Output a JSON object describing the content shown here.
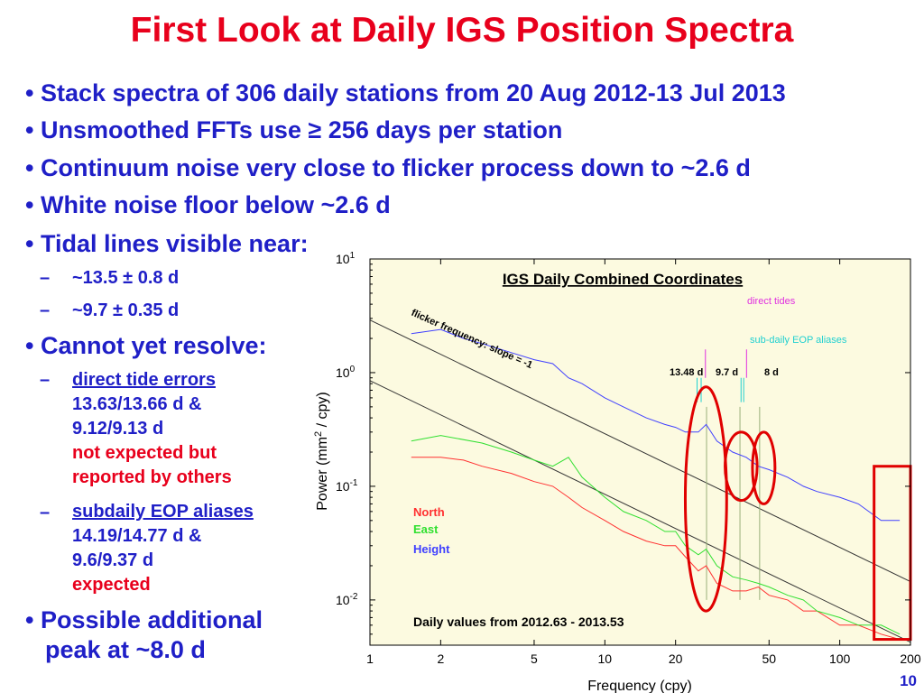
{
  "slide": {
    "title": "First Look at Daily IGS Position Spectra",
    "bullets": [
      "• Stack spectra of 306 daily stations from 20 Aug 2012-13 Jul 2013",
      "• Unsmoothed FFTs use ≥ 256 days per station",
      "• Continuum noise very close to flicker process down to ~2.6 d",
      "• White noise floor below ~2.6 d",
      "• Tidal lines visible near:"
    ],
    "tidal_lines": [
      "~13.5 ± 0.8 d",
      "~9.7 ± 0.35 d"
    ],
    "cannot_resolve": {
      "heading": "• Cannot yet resolve:",
      "dash": "–",
      "item1": {
        "title": "direct tide errors",
        "line1": "13.63/13.66 d &",
        "line2": "9.12/9.13 d",
        "note1": "not expected but",
        "note2": "reported by others"
      },
      "item2": {
        "title": "subdaily EOP aliases",
        "line1": "14.19/14.77 d &",
        "line2": "9.6/9.37 d",
        "note1": "expected"
      }
    },
    "possible": {
      "line1": "• Possible additional",
      "line2": "peak at ~8.0 d"
    },
    "page_number": "10"
  },
  "colors": {
    "title": "#e8001c",
    "text": "#1f1fc7",
    "plot_bg": "#fcfae0",
    "north": "#ff3030",
    "east": "#30e030",
    "height": "#4040ff",
    "direct_tides": "#e030e0",
    "eop": "#20d0d0",
    "highlight": "#e00000"
  },
  "chart_data": {
    "type": "line",
    "title": "IGS Daily Combined Coordinates",
    "xlabel": "Frequency (cpy)",
    "ylabel_main": "Power (mm",
    "ylabel_sup": "2",
    "ylabel_tail": " / cpy)",
    "x_scale": "log",
    "y_scale": "log",
    "xlim": [
      1,
      200
    ],
    "ylim": [
      0.004,
      10
    ],
    "x_ticks": [
      1,
      2,
      5,
      10,
      20,
      50,
      100,
      200
    ],
    "x_tick_labels": [
      "1",
      "2",
      "5",
      "10",
      "20",
      "50",
      "100",
      "200"
    ],
    "y_ticks": [
      10,
      1,
      0.1,
      0.01
    ],
    "y_tick_labels": [
      {
        "base": "10",
        "exp": "1"
      },
      {
        "base": "10",
        "exp": "0"
      },
      {
        "base": "10",
        "exp": "-1"
      },
      {
        "base": "10",
        "exp": "-2"
      }
    ],
    "series": [
      {
        "name": "North",
        "color": "#ff3030",
        "x": [
          1.5,
          2,
          2.5,
          3,
          4,
          5,
          6,
          7,
          8,
          10,
          12,
          15,
          18,
          20,
          22,
          25,
          27,
          30,
          35,
          40,
          45,
          50,
          60,
          70,
          80,
          100,
          120,
          150,
          180
        ],
        "y": [
          0.18,
          0.18,
          0.17,
          0.15,
          0.13,
          0.11,
          0.1,
          0.08,
          0.065,
          0.05,
          0.04,
          0.033,
          0.03,
          0.03,
          0.024,
          0.018,
          0.02,
          0.014,
          0.012,
          0.012,
          0.013,
          0.011,
          0.01,
          0.008,
          0.008,
          0.006,
          0.006,
          0.005,
          0.0045
        ]
      },
      {
        "name": "East",
        "color": "#30e030",
        "x": [
          1.5,
          2,
          3,
          4,
          5,
          6,
          7,
          8,
          10,
          12,
          15,
          18,
          20,
          22,
          25,
          27,
          30,
          35,
          40,
          45,
          50,
          60,
          70,
          80,
          100,
          120,
          150,
          180
        ],
        "y": [
          0.25,
          0.28,
          0.24,
          0.2,
          0.17,
          0.15,
          0.18,
          0.12,
          0.08,
          0.06,
          0.05,
          0.04,
          0.04,
          0.03,
          0.025,
          0.028,
          0.02,
          0.016,
          0.015,
          0.014,
          0.013,
          0.011,
          0.01,
          0.008,
          0.007,
          0.006,
          0.006,
          0.005
        ]
      },
      {
        "name": "Height",
        "color": "#4040ff",
        "x": [
          1.5,
          2,
          2.5,
          3,
          4,
          5,
          6,
          7,
          8,
          10,
          12,
          15,
          18,
          20,
          22,
          25,
          27,
          30,
          35,
          40,
          45,
          50,
          60,
          70,
          80,
          100,
          120,
          150,
          180
        ],
        "y": [
          2.2,
          2.4,
          2.0,
          1.8,
          1.5,
          1.3,
          1.2,
          0.9,
          0.8,
          0.6,
          0.5,
          0.4,
          0.35,
          0.33,
          0.3,
          0.3,
          0.35,
          0.25,
          0.2,
          0.18,
          0.15,
          0.14,
          0.12,
          0.1,
          0.09,
          0.08,
          0.07,
          0.05,
          0.05
        ]
      }
    ],
    "reference_lines": [
      {
        "label": "flicker frequency: slope = -1",
        "slope": -1,
        "at_x": 1,
        "y": 2.9
      },
      {
        "slope": -1,
        "at_x": 1,
        "y": 0.85
      }
    ],
    "markers": {
      "direct_tides": {
        "label": "direct tides",
        "x": [
          26.8,
          40.1
        ]
      },
      "eop_aliases": {
        "label": "sub-daily EOP aliases",
        "x": [
          24.7,
          25.7,
          38.0,
          39.0
        ]
      },
      "peaks": [
        {
          "label": "13.48 d",
          "x": 27.1
        },
        {
          "label": "9.7 d",
          "x": 37.6
        },
        {
          "label": "8 d",
          "x": 45.6
        }
      ]
    },
    "highlights": [
      {
        "shape": "ellipse",
        "x_range": [
          22,
          33
        ],
        "y_range": [
          0.008,
          0.75
        ]
      },
      {
        "shape": "ellipse",
        "x_range": [
          32.5,
          44.5
        ],
        "y_range": [
          0.075,
          0.3
        ]
      },
      {
        "shape": "ellipse",
        "x_range": [
          42.5,
          53
        ],
        "y_range": [
          0.07,
          0.3
        ]
      },
      {
        "shape": "rect",
        "x_range": [
          140,
          200
        ],
        "y_range": [
          0.0045,
          0.15
        ]
      }
    ],
    "legend": {
      "placement": "lower-left",
      "items": [
        "North",
        "East",
        "Height"
      ]
    },
    "footer_note": "Daily values from 2012.63 - 2013.53"
  }
}
